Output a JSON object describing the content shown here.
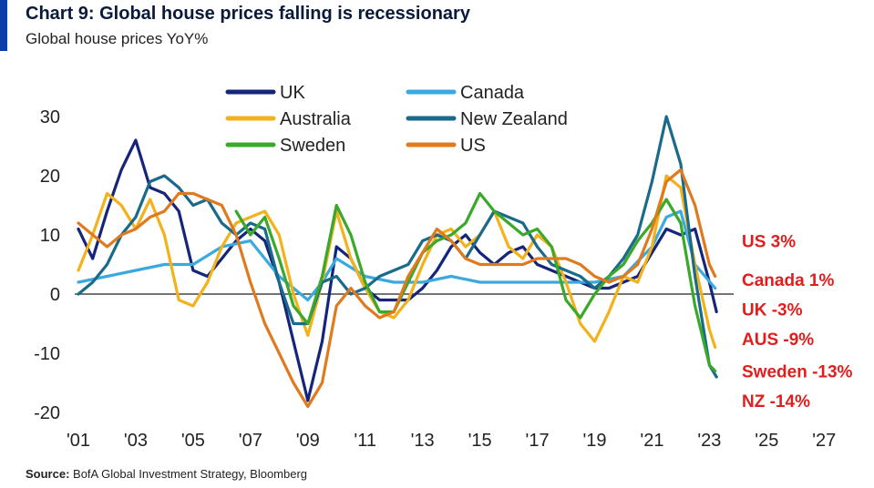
{
  "header": {
    "title": "Chart 9: Global house prices falling is recessionary",
    "subtitle": "Global house prices YoY%"
  },
  "footer": {
    "source_label": "Source:",
    "source_text": "BofA Global Investment Strategy, Bloomberg"
  },
  "colors": {
    "accent": "#0b3ea8",
    "UK": "#15257a",
    "Canada": "#3aa9e0",
    "Australia": "#f3b21b",
    "New Zealand": "#1a6a8c",
    "Sweden": "#3aa82a",
    "US": "#e07a1e",
    "annotation": "#e01e1e"
  },
  "chart_data": {
    "type": "line",
    "xlim": [
      2001,
      2027.5
    ],
    "ylim": [
      -20,
      30
    ],
    "x_ticks": [
      2001,
      2003,
      2005,
      2007,
      2009,
      2011,
      2013,
      2015,
      2017,
      2019,
      2021,
      2023,
      2025,
      2027
    ],
    "x_tick_labels": [
      "'01",
      "'03",
      "'05",
      "'07",
      "'09",
      "'11",
      "'13",
      "'15",
      "'17",
      "'19",
      "'21",
      "'23",
      "'25",
      "'27"
    ],
    "y_ticks": [
      -20,
      -10,
      0,
      10,
      20,
      30
    ],
    "y_tick_labels": [
      "-20",
      "-10",
      "0",
      "10",
      "20",
      "30"
    ],
    "legend_position": "top",
    "series": [
      {
        "name": "UK",
        "points": [
          [
            2001,
            11
          ],
          [
            2001.5,
            6
          ],
          [
            2002,
            14
          ],
          [
            2002.5,
            21
          ],
          [
            2003,
            26
          ],
          [
            2003.5,
            18
          ],
          [
            2004,
            17
          ],
          [
            2004.5,
            14
          ],
          [
            2005,
            4
          ],
          [
            2005.5,
            3
          ],
          [
            2006,
            6
          ],
          [
            2006.5,
            9
          ],
          [
            2007,
            11
          ],
          [
            2007.5,
            9
          ],
          [
            2008,
            2
          ],
          [
            2008.5,
            -8
          ],
          [
            2009,
            -18
          ],
          [
            2009.5,
            -8
          ],
          [
            2010,
            8
          ],
          [
            2010.5,
            6
          ],
          [
            2011,
            1
          ],
          [
            2011.5,
            -1
          ],
          [
            2012,
            -1
          ],
          [
            2012.5,
            -1
          ],
          [
            2013,
            1
          ],
          [
            2013.5,
            4
          ],
          [
            2014,
            8
          ],
          [
            2014.5,
            10
          ],
          [
            2015,
            7
          ],
          [
            2015.5,
            5
          ],
          [
            2016,
            7
          ],
          [
            2016.5,
            8
          ],
          [
            2017,
            5
          ],
          [
            2017.5,
            4
          ],
          [
            2018,
            3
          ],
          [
            2018.5,
            2
          ],
          [
            2019,
            1
          ],
          [
            2019.5,
            1
          ],
          [
            2020,
            2
          ],
          [
            2020.5,
            3
          ],
          [
            2021,
            7
          ],
          [
            2021.5,
            11
          ],
          [
            2022,
            10
          ],
          [
            2022.5,
            11
          ],
          [
            2023,
            2
          ],
          [
            2023.25,
            -3
          ]
        ]
      },
      {
        "name": "Canada",
        "points": [
          [
            2001,
            2
          ],
          [
            2002,
            3
          ],
          [
            2003,
            4
          ],
          [
            2004,
            5
          ],
          [
            2005,
            5
          ],
          [
            2006,
            8
          ],
          [
            2007,
            9
          ],
          [
            2008,
            3
          ],
          [
            2009,
            -1
          ],
          [
            2009.5,
            2
          ],
          [
            2010,
            6
          ],
          [
            2011,
            3
          ],
          [
            2012,
            2
          ],
          [
            2013,
            2
          ],
          [
            2014,
            3
          ],
          [
            2015,
            2
          ],
          [
            2016,
            2
          ],
          [
            2017,
            2
          ],
          [
            2018,
            2
          ],
          [
            2019,
            2
          ],
          [
            2020,
            3
          ],
          [
            2021,
            8
          ],
          [
            2021.5,
            13
          ],
          [
            2022,
            14
          ],
          [
            2022.5,
            5
          ],
          [
            2023.2,
            1
          ]
        ]
      },
      {
        "name": "Australia",
        "points": [
          [
            2001,
            4
          ],
          [
            2001.5,
            10
          ],
          [
            2002,
            17
          ],
          [
            2002.5,
            15
          ],
          [
            2003,
            11
          ],
          [
            2003.5,
            16
          ],
          [
            2004,
            10
          ],
          [
            2004.5,
            -1
          ],
          [
            2005,
            -2
          ],
          [
            2005.5,
            2
          ],
          [
            2006,
            8
          ],
          [
            2006.5,
            12
          ],
          [
            2007,
            13
          ],
          [
            2007.5,
            14
          ],
          [
            2008,
            10
          ],
          [
            2008.5,
            0
          ],
          [
            2009,
            -7
          ],
          [
            2009.5,
            2
          ],
          [
            2010,
            14
          ],
          [
            2010.5,
            6
          ],
          [
            2011,
            1
          ],
          [
            2011.5,
            -3
          ],
          [
            2012,
            -4
          ],
          [
            2012.5,
            -1
          ],
          [
            2013,
            5
          ],
          [
            2013.5,
            10
          ],
          [
            2014,
            11
          ],
          [
            2014.5,
            8
          ],
          [
            2015,
            10
          ],
          [
            2015.5,
            14
          ],
          [
            2016,
            8
          ],
          [
            2016.5,
            6
          ],
          [
            2017,
            10
          ],
          [
            2017.5,
            8
          ],
          [
            2018,
            2
          ],
          [
            2018.5,
            -5
          ],
          [
            2019,
            -8
          ],
          [
            2019.5,
            -3
          ],
          [
            2020,
            3
          ],
          [
            2020.5,
            2
          ],
          [
            2021,
            8
          ],
          [
            2021.5,
            20
          ],
          [
            2022,
            18
          ],
          [
            2022.5,
            5
          ],
          [
            2023,
            -6
          ],
          [
            2023.2,
            -9
          ]
        ]
      },
      {
        "name": "New Zealand",
        "points": [
          [
            2001,
            0
          ],
          [
            2001.5,
            2
          ],
          [
            2002,
            5
          ],
          [
            2002.5,
            10
          ],
          [
            2003,
            13
          ],
          [
            2003.5,
            19
          ],
          [
            2004,
            20
          ],
          [
            2004.5,
            18
          ],
          [
            2005,
            15
          ],
          [
            2005.5,
            16
          ],
          [
            2006,
            12
          ],
          [
            2006.5,
            10
          ],
          [
            2007,
            12
          ],
          [
            2007.5,
            11
          ],
          [
            2008,
            2
          ],
          [
            2008.5,
            -5
          ],
          [
            2009,
            -5
          ],
          [
            2009.5,
            2
          ],
          [
            2010,
            3
          ],
          [
            2010.5,
            0
          ],
          [
            2011,
            1
          ],
          [
            2011.5,
            3
          ],
          [
            2012,
            4
          ],
          [
            2012.5,
            5
          ],
          [
            2013,
            9
          ],
          [
            2013.5,
            10
          ],
          [
            2014,
            9
          ],
          [
            2014.5,
            6
          ],
          [
            2015,
            10
          ],
          [
            2015.5,
            14
          ],
          [
            2016,
            13
          ],
          [
            2016.5,
            12
          ],
          [
            2017,
            8
          ],
          [
            2017.5,
            5
          ],
          [
            2018,
            4
          ],
          [
            2018.5,
            3
          ],
          [
            2019,
            1
          ],
          [
            2019.5,
            3
          ],
          [
            2020,
            6
          ],
          [
            2020.5,
            10
          ],
          [
            2021,
            19
          ],
          [
            2021.5,
            30
          ],
          [
            2022,
            22
          ],
          [
            2022.5,
            3
          ],
          [
            2023,
            -12
          ],
          [
            2023.25,
            -14
          ]
        ]
      },
      {
        "name": "Sweden",
        "points": [
          [
            2006.5,
            14
          ],
          [
            2007,
            10
          ],
          [
            2007.5,
            13
          ],
          [
            2008,
            6
          ],
          [
            2008.5,
            -2
          ],
          [
            2009,
            -5
          ],
          [
            2009.5,
            3
          ],
          [
            2010,
            15
          ],
          [
            2010.5,
            10
          ],
          [
            2011,
            2
          ],
          [
            2011.5,
            -3
          ],
          [
            2012,
            -3
          ],
          [
            2012.5,
            2
          ],
          [
            2013,
            7
          ],
          [
            2013.5,
            9
          ],
          [
            2014,
            10
          ],
          [
            2014.5,
            12
          ],
          [
            2015,
            17
          ],
          [
            2015.5,
            14
          ],
          [
            2016,
            12
          ],
          [
            2016.5,
            10
          ],
          [
            2017,
            11
          ],
          [
            2017.5,
            8
          ],
          [
            2018,
            -1
          ],
          [
            2018.5,
            -4
          ],
          [
            2019,
            0
          ],
          [
            2019.5,
            3
          ],
          [
            2020,
            5
          ],
          [
            2020.5,
            9
          ],
          [
            2021,
            12
          ],
          [
            2021.5,
            16
          ],
          [
            2022,
            12
          ],
          [
            2022.5,
            -2
          ],
          [
            2023,
            -12
          ],
          [
            2023.2,
            -13
          ]
        ]
      },
      {
        "name": "US",
        "points": [
          [
            2001,
            12
          ],
          [
            2001.5,
            10
          ],
          [
            2002,
            8
          ],
          [
            2002.5,
            10
          ],
          [
            2003,
            11
          ],
          [
            2003.5,
            13
          ],
          [
            2004,
            14
          ],
          [
            2004.5,
            17
          ],
          [
            2005,
            17
          ],
          [
            2005.5,
            16
          ],
          [
            2006,
            15
          ],
          [
            2006.5,
            10
          ],
          [
            2007,
            2
          ],
          [
            2007.5,
            -5
          ],
          [
            2008,
            -10
          ],
          [
            2008.5,
            -15
          ],
          [
            2009,
            -19
          ],
          [
            2009.5,
            -15
          ],
          [
            2010,
            -2
          ],
          [
            2010.5,
            1
          ],
          [
            2011,
            -2
          ],
          [
            2011.5,
            -4
          ],
          [
            2012,
            -3
          ],
          [
            2012.5,
            3
          ],
          [
            2013,
            7
          ],
          [
            2013.5,
            11
          ],
          [
            2014,
            9
          ],
          [
            2014.5,
            6
          ],
          [
            2015,
            5
          ],
          [
            2015.5,
            5
          ],
          [
            2016,
            5
          ],
          [
            2016.5,
            5
          ],
          [
            2017,
            6
          ],
          [
            2017.5,
            6
          ],
          [
            2018,
            6
          ],
          [
            2018.5,
            5
          ],
          [
            2019,
            3
          ],
          [
            2019.5,
            2
          ],
          [
            2020,
            3
          ],
          [
            2020.5,
            5
          ],
          [
            2021,
            11
          ],
          [
            2021.5,
            19
          ],
          [
            2022,
            21
          ],
          [
            2022.5,
            15
          ],
          [
            2023,
            5
          ],
          [
            2023.2,
            3
          ]
        ]
      }
    ],
    "end_labels": [
      {
        "text": "US 3%",
        "y": 9
      },
      {
        "text": "Canada 1%",
        "y": 2.5
      },
      {
        "text": "UK -3%",
        "y": -2.5
      },
      {
        "text": "AUS -9%",
        "y": -7.5
      },
      {
        "text": "Sweden -13%",
        "y": -13
      },
      {
        "text": "NZ -14%",
        "y": -18
      }
    ]
  }
}
